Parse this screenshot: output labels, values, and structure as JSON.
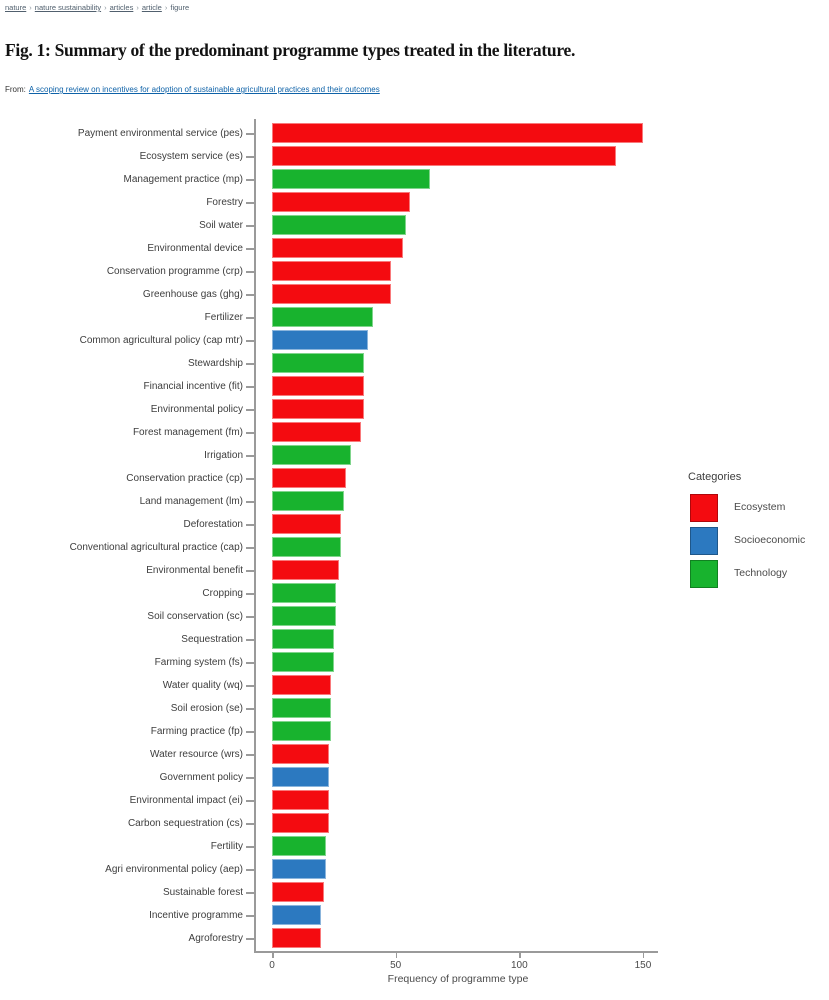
{
  "breadcrumb": {
    "separator": "›",
    "items": [
      {
        "label": "nature",
        "link": true
      },
      {
        "label": "nature sustainability",
        "link": true
      },
      {
        "label": "articles",
        "link": true
      },
      {
        "label": "article",
        "link": true
      },
      {
        "label": "figure",
        "link": false
      }
    ]
  },
  "figure": {
    "title": "Fig. 1: Summary of the predominant programme types treated in the literature.",
    "from_prefix": "From:",
    "from_link": "A scoping review on incentives for adoption of sustainable agricultural practices and their outcomes"
  },
  "colors": {
    "ecosystem": "#F40B10",
    "socioeconomic": "#2C79C0",
    "technology": "#18B32E",
    "axis": "#9A9A9A",
    "link": "#0E62A8"
  },
  "chart_data": {
    "type": "bar",
    "orientation": "horizontal",
    "title": "",
    "xlabel": "Frequency of programme type",
    "ylabel": "",
    "xlim": [
      0,
      156
    ],
    "xticks": [
      0,
      50,
      100,
      150
    ],
    "grid": false,
    "legend": {
      "title": "Categories",
      "position": "right",
      "entries": [
        {
          "label": "Ecosystem",
          "color_key": "ecosystem"
        },
        {
          "label": "Socioeconomic",
          "color_key": "socioeconomic"
        },
        {
          "label": "Technology",
          "color_key": "technology"
        }
      ]
    },
    "bars": [
      {
        "label": "Payment environmental service (pes)",
        "value": 150,
        "category": "Ecosystem"
      },
      {
        "label": "Ecosystem service (es)",
        "value": 139,
        "category": "Ecosystem"
      },
      {
        "label": "Management practice (mp)",
        "value": 64,
        "category": "Technology"
      },
      {
        "label": "Forestry",
        "value": 56,
        "category": "Ecosystem"
      },
      {
        "label": "Soil water",
        "value": 54,
        "category": "Technology"
      },
      {
        "label": "Environmental device",
        "value": 53,
        "category": "Ecosystem"
      },
      {
        "label": "Conservation programme (crp)",
        "value": 48,
        "category": "Ecosystem"
      },
      {
        "label": "Greenhouse gas (ghg)",
        "value": 48,
        "category": "Ecosystem"
      },
      {
        "label": "Fertilizer",
        "value": 41,
        "category": "Technology"
      },
      {
        "label": "Common agricultural policy (cap mtr)",
        "value": 39,
        "category": "Socioeconomic"
      },
      {
        "label": "Stewardship",
        "value": 37,
        "category": "Technology"
      },
      {
        "label": "Financial incentive (fit)",
        "value": 37,
        "category": "Ecosystem"
      },
      {
        "label": "Environmental policy",
        "value": 37,
        "category": "Ecosystem"
      },
      {
        "label": "Forest management (fm)",
        "value": 36,
        "category": "Ecosystem"
      },
      {
        "label": "Irrigation",
        "value": 32,
        "category": "Technology"
      },
      {
        "label": "Conservation practice (cp)",
        "value": 30,
        "category": "Ecosystem"
      },
      {
        "label": "Land management (lm)",
        "value": 29,
        "category": "Technology"
      },
      {
        "label": "Deforestation",
        "value": 28,
        "category": "Ecosystem"
      },
      {
        "label": "Conventional agricultural practice (cap)",
        "value": 28,
        "category": "Technology"
      },
      {
        "label": "Environmental benefit",
        "value": 27,
        "category": "Ecosystem"
      },
      {
        "label": "Cropping",
        "value": 26,
        "category": "Technology"
      },
      {
        "label": "Soil conservation (sc)",
        "value": 26,
        "category": "Technology"
      },
      {
        "label": "Sequestration",
        "value": 25,
        "category": "Technology"
      },
      {
        "label": "Farming system (fs)",
        "value": 25,
        "category": "Technology"
      },
      {
        "label": "Water quality (wq)",
        "value": 24,
        "category": "Ecosystem"
      },
      {
        "label": "Soil erosion (se)",
        "value": 24,
        "category": "Technology"
      },
      {
        "label": "Farming practice (fp)",
        "value": 24,
        "category": "Technology"
      },
      {
        "label": "Water resource (wrs)",
        "value": 23,
        "category": "Ecosystem"
      },
      {
        "label": "Government policy",
        "value": 23,
        "category": "Socioeconomic"
      },
      {
        "label": "Environmental impact (ei)",
        "value": 23,
        "category": "Ecosystem"
      },
      {
        "label": "Carbon sequestration (cs)",
        "value": 23,
        "category": "Ecosystem"
      },
      {
        "label": "Fertility",
        "value": 22,
        "category": "Technology"
      },
      {
        "label": "Agri environmental policy (aep)",
        "value": 22,
        "category": "Socioeconomic"
      },
      {
        "label": "Sustainable forest",
        "value": 21,
        "category": "Ecosystem"
      },
      {
        "label": "Incentive programme",
        "value": 20,
        "category": "Socioeconomic"
      },
      {
        "label": "Agroforestry",
        "value": 20,
        "category": "Ecosystem"
      }
    ]
  }
}
